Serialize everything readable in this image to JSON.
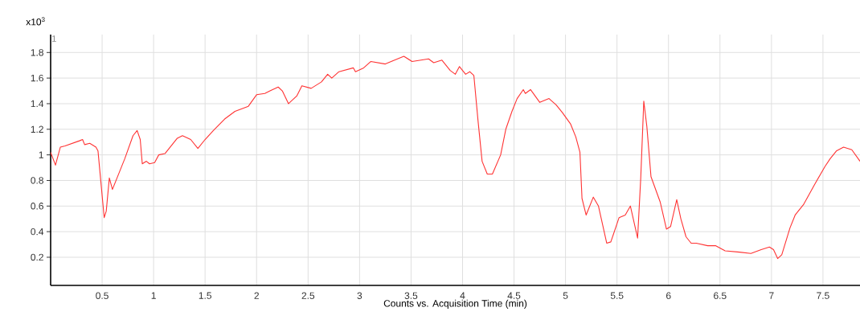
{
  "chart_data": {
    "type": "line",
    "xlabel": "Counts vs. Acquisition Time (min)",
    "ylabel": "x10$^{3}$",
    "annotations": [
      "1"
    ],
    "x": [
      0,
      0.047,
      0.094,
      0.14,
      0.28,
      0.31,
      0.33,
      0.38,
      0.44,
      0.46,
      0.52,
      0.54,
      0.57,
      0.6,
      0.72,
      0.8,
      0.84,
      0.87,
      0.89,
      0.93,
      0.96,
      1.01,
      1.05,
      1.11,
      1.23,
      1.28,
      1.36,
      1.43,
      1.5,
      1.58,
      1.69,
      1.79,
      1.92,
      2.0,
      2.08,
      2.13,
      2.21,
      2.25,
      2.31,
      2.39,
      2.44,
      2.53,
      2.63,
      2.69,
      2.73,
      2.8,
      2.94,
      2.96,
      3.04,
      3.11,
      3.25,
      3.43,
      3.51,
      3.67,
      3.72,
      3.8,
      3.88,
      3.93,
      3.97,
      4.03,
      4.07,
      4.11,
      4.15,
      4.19,
      4.24,
      4.29,
      4.37,
      4.42,
      4.48,
      4.53,
      4.59,
      4.61,
      4.66,
      4.75,
      4.84,
      4.91,
      4.97,
      5.05,
      5.1,
      5.14,
      5.16,
      5.2,
      5.27,
      5.32,
      5.4,
      5.44,
      5.52,
      5.58,
      5.63,
      5.7,
      5.73,
      5.76,
      5.79,
      5.83,
      5.92,
      5.98,
      6.02,
      6.08,
      6.12,
      6.17,
      6.22,
      6.27,
      6.38,
      6.46,
      6.55,
      6.69,
      6.8,
      6.9,
      6.98,
      7.02,
      7.06,
      7.1,
      7.18,
      7.23,
      7.31,
      7.42,
      7.52,
      7.57,
      7.63,
      7.7,
      7.78,
      7.86
    ],
    "series": [
      {
        "color": "#ff3333",
        "values": [
          1.02,
          0.92,
          1.06,
          1.07,
          1.11,
          1.12,
          1.08,
          1.09,
          1.06,
          1.03,
          0.51,
          0.56,
          0.82,
          0.73,
          0.97,
          1.15,
          1.19,
          1.12,
          0.93,
          0.95,
          0.93,
          0.94,
          1.0,
          1.01,
          1.13,
          1.15,
          1.12,
          1.05,
          1.12,
          1.19,
          1.28,
          1.34,
          1.38,
          1.47,
          1.48,
          1.5,
          1.53,
          1.5,
          1.4,
          1.46,
          1.54,
          1.52,
          1.57,
          1.63,
          1.6,
          1.65,
          1.68,
          1.65,
          1.68,
          1.73,
          1.71,
          1.77,
          1.73,
          1.75,
          1.72,
          1.74,
          1.66,
          1.63,
          1.69,
          1.63,
          1.65,
          1.62,
          1.27,
          0.95,
          0.85,
          0.85,
          1.0,
          1.2,
          1.34,
          1.44,
          1.51,
          1.48,
          1.51,
          1.41,
          1.44,
          1.39,
          1.33,
          1.24,
          1.14,
          1.02,
          0.66,
          0.53,
          0.67,
          0.6,
          0.31,
          0.32,
          0.51,
          0.53,
          0.6,
          0.35,
          0.81,
          1.42,
          1.22,
          0.83,
          0.63,
          0.42,
          0.44,
          0.65,
          0.5,
          0.36,
          0.31,
          0.31,
          0.29,
          0.29,
          0.25,
          0.24,
          0.23,
          0.26,
          0.28,
          0.26,
          0.19,
          0.22,
          0.43,
          0.53,
          0.61,
          0.77,
          0.91,
          0.97,
          1.03,
          1.06,
          1.04,
          0.95
        ]
      }
    ],
    "xlim": [
      0,
      7.86
    ],
    "ylim": [
      -0.02,
      1.94
    ],
    "xticks": [
      0.5,
      1,
      1.5,
      2,
      2.5,
      3,
      3.5,
      4,
      4.5,
      5,
      5.5,
      6,
      6.5,
      7,
      7.5
    ],
    "yticks": [
      0.2,
      0.4,
      0.6,
      0.8,
      1,
      1.2,
      1.4,
      1.6,
      1.8
    ],
    "grid": true
  }
}
